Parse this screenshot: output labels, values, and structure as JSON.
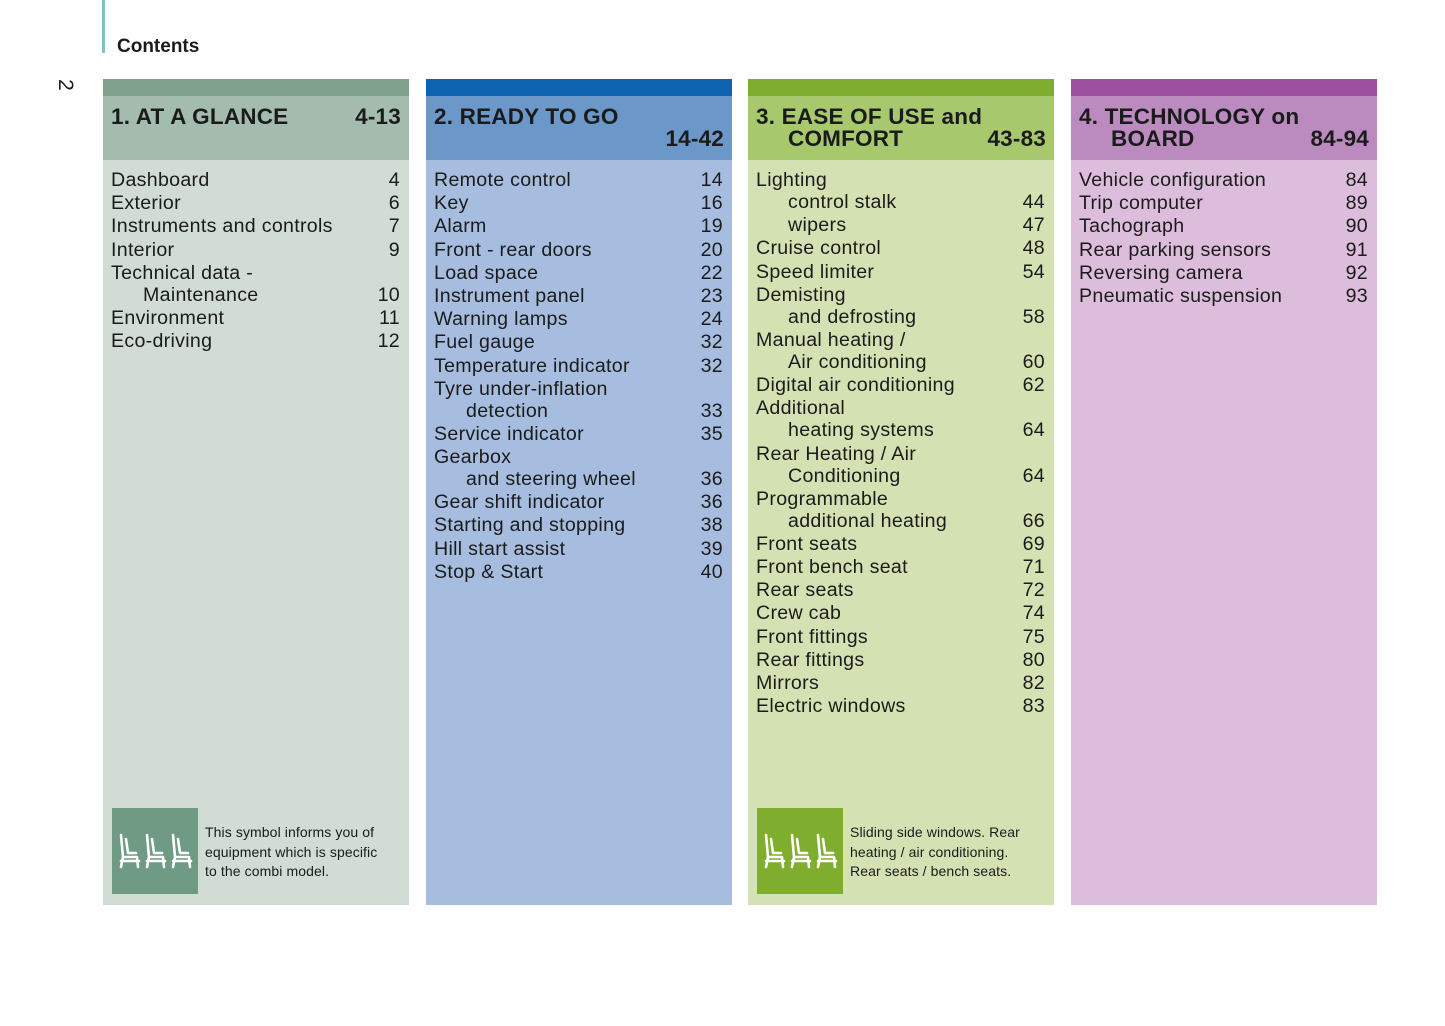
{
  "page_number": "2",
  "page_title": "Contents",
  "colors": {
    "sage": "#6f9a84",
    "green": "#7fae2f",
    "blue": "#0d63ad",
    "purple": "#9c4f9e"
  },
  "sections": [
    {
      "title_lines": [
        "1. AT A GLANCE"
      ],
      "pages": "4-13",
      "entries": [
        {
          "lines": [
            "Dashboard"
          ],
          "page": "4"
        },
        {
          "lines": [
            "Exterior"
          ],
          "page": "6"
        },
        {
          "lines": [
            "Instruments and controls"
          ],
          "page": "7"
        },
        {
          "lines": [
            "Interior"
          ],
          "page": "9"
        },
        {
          "lines": [
            "Technical data -",
            "Maintenance"
          ],
          "page": "10"
        },
        {
          "lines": [
            "Environment"
          ],
          "page": "11"
        },
        {
          "lines": [
            "Eco-driving"
          ],
          "page": "12"
        }
      ],
      "note": {
        "icon": "three-seats-icon",
        "text": "This symbol informs you of\nequipment which is specific\nto the combi model."
      }
    },
    {
      "title_lines": [
        "2. READY TO GO"
      ],
      "pages": "14-42",
      "entries": [
        {
          "lines": [
            "Remote control"
          ],
          "page": "14"
        },
        {
          "lines": [
            "Key"
          ],
          "page": "16"
        },
        {
          "lines": [
            "Alarm"
          ],
          "page": "19"
        },
        {
          "lines": [
            "Front - rear doors"
          ],
          "page": "20"
        },
        {
          "lines": [
            "Load space"
          ],
          "page": "22"
        },
        {
          "lines": [
            "Instrument panel"
          ],
          "page": "23"
        },
        {
          "lines": [
            "Warning lamps"
          ],
          "page": "24"
        },
        {
          "lines": [
            "Fuel gauge"
          ],
          "page": "32"
        },
        {
          "lines": [
            "Temperature indicator"
          ],
          "page": "32"
        },
        {
          "lines": [
            "Tyre under-inflation",
            "detection"
          ],
          "page": "33"
        },
        {
          "lines": [
            "Service indicator"
          ],
          "page": "35"
        },
        {
          "lines": [
            "Gearbox",
            "and steering wheel"
          ],
          "page": "36"
        },
        {
          "lines": [
            "Gear shift indicator"
          ],
          "page": "36"
        },
        {
          "lines": [
            "Starting and stopping"
          ],
          "page": "38"
        },
        {
          "lines": [
            "Hill start assist"
          ],
          "page": "39"
        },
        {
          "lines": [
            "Stop & Start"
          ],
          "page": "40"
        }
      ]
    },
    {
      "title_lines": [
        "3. EASE OF USE and",
        "COMFORT"
      ],
      "pages": "43-83",
      "entries": [
        {
          "lines": [
            "Lighting",
            "control stalk"
          ],
          "page": "44"
        },
        {
          "lines": [
            "wipers"
          ],
          "page": "47",
          "indent": true
        },
        {
          "lines": [
            "Cruise control"
          ],
          "page": "48"
        },
        {
          "lines": [
            "Speed limiter"
          ],
          "page": "54"
        },
        {
          "lines": [
            "Demisting",
            "and defrosting"
          ],
          "page": "58"
        },
        {
          "lines": [
            "Manual heating /",
            "Air conditioning"
          ],
          "page": "60"
        },
        {
          "lines": [
            "Digital air conditioning"
          ],
          "page": "62"
        },
        {
          "lines": [
            "Additional",
            "heating systems"
          ],
          "page": "64"
        },
        {
          "lines": [
            "Rear Heating / Air",
            "Conditioning"
          ],
          "page": "64"
        },
        {
          "lines": [
            "Programmable",
            "additional heating"
          ],
          "page": "66"
        },
        {
          "lines": [
            "Front seats"
          ],
          "page": "69"
        },
        {
          "lines": [
            "Front bench seat"
          ],
          "page": "71"
        },
        {
          "lines": [
            "Rear seats"
          ],
          "page": "72"
        },
        {
          "lines": [
            "Crew cab"
          ],
          "page": "74"
        },
        {
          "lines": [
            "Front fittings"
          ],
          "page": "75"
        },
        {
          "lines": [
            "Rear fittings"
          ],
          "page": "80"
        },
        {
          "lines": [
            "Mirrors"
          ],
          "page": "82"
        },
        {
          "lines": [
            "Electric windows"
          ],
          "page": "83"
        }
      ],
      "note": {
        "icon": "three-seats-icon",
        "text": "Sliding side windows. Rear\nheating / air conditioning.\nRear seats / bench seats."
      }
    },
    {
      "title_lines": [
        "4. TECHNOLOGY on",
        "BOARD"
      ],
      "pages": "84-94",
      "entries": [
        {
          "lines": [
            "Vehicle configuration"
          ],
          "page": "84"
        },
        {
          "lines": [
            "Trip computer"
          ],
          "page": "89"
        },
        {
          "lines": [
            "Tachograph"
          ],
          "page": "90"
        },
        {
          "lines": [
            "Rear parking sensors"
          ],
          "page": "91"
        },
        {
          "lines": [
            "Reversing camera"
          ],
          "page": "92"
        },
        {
          "lines": [
            "Pneumatic suspension"
          ],
          "page": "93"
        }
      ]
    }
  ]
}
